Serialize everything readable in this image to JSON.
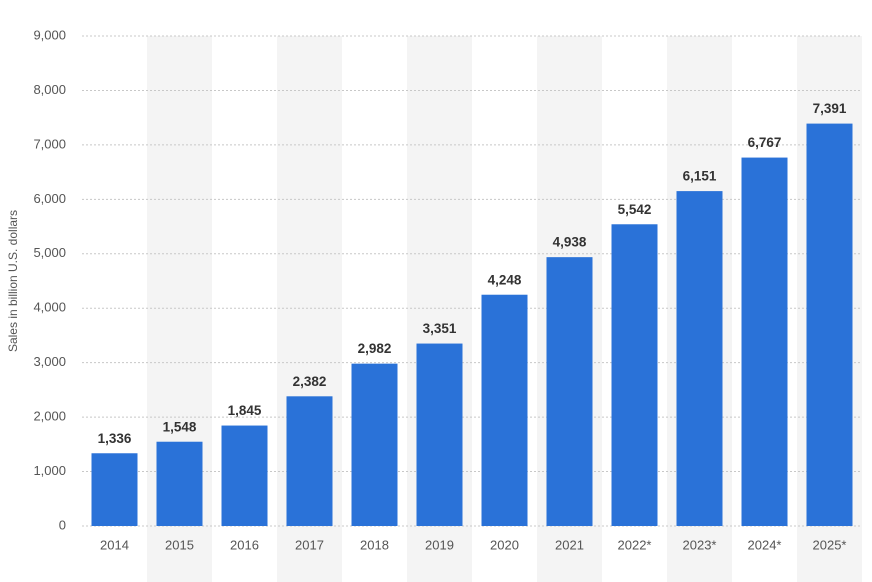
{
  "chart_data": {
    "type": "bar",
    "y_label": "Sales in billion U.S. dollars",
    "categories": [
      "2014",
      "2015",
      "2016",
      "2017",
      "2018",
      "2019",
      "2020",
      "2021",
      "2022*",
      "2023*",
      "2024*",
      "2025*"
    ],
    "values": [
      1336,
      1548,
      1845,
      2382,
      2982,
      3351,
      4248,
      4938,
      5542,
      6151,
      6767,
      7391
    ],
    "value_labels": [
      "1,336",
      "1,548",
      "1,845",
      "2,382",
      "2,982",
      "3,351",
      "4,248",
      "4,938",
      "5,542",
      "6,151",
      "6,767",
      "7,391"
    ],
    "color": "#2a72d8",
    "ylim": [
      0,
      9000
    ],
    "yticks": [
      0,
      {
        "value": 1000,
        "label": "1,000"
      },
      {
        "value": 2000,
        "label": "2,000"
      },
      {
        "value": 3000,
        "label": "3,000"
      },
      {
        "value": 4000,
        "label": "4,000"
      },
      {
        "value": 5000,
        "label": "5,000"
      },
      {
        "value": 6000,
        "label": "6,000"
      },
      {
        "value": 7000,
        "label": "7,000"
      },
      {
        "value": 8000,
        "label": "8,000"
      },
      {
        "value": 9000,
        "label": "9,000"
      }
    ],
    "grid": true
  }
}
